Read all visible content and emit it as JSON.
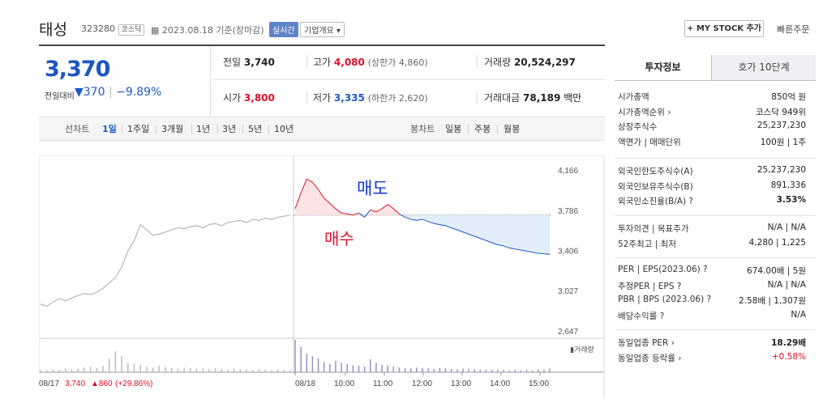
{
  "header": {
    "title": "태성",
    "code": "323280",
    "market_badge": "코스닥",
    "date_text": "2023.08.18 기준(장마감)",
    "live_button": "실시간",
    "company_button": "기업개요 ▾",
    "mystock_button": "+ MY STOCK 추가",
    "fast_order": "빠른주문"
  },
  "quote": {
    "price": "3,370",
    "change_label": "전일대비",
    "change_value": "▼370",
    "change_rate": "−9.89%",
    "prev_close_label": "전일",
    "prev_close": "3,740",
    "high_label": "고가",
    "high": "4,080",
    "upper_limit": "(상한가 4,860)",
    "volume_label": "거래량",
    "volume": "20,524,297",
    "open_label": "시가",
    "open": "3,800",
    "low_label": "저가",
    "low": "3,335",
    "lower_limit": "(하한가 2,620)",
    "amount_label": "거래대금",
    "amount": "78,189",
    "amount_unit": "백만"
  },
  "period_bar": {
    "line_chart_label": "선차트",
    "periods": [
      "1일",
      "1주일",
      "3개월",
      "1년",
      "3년",
      "5년",
      "10년"
    ],
    "active_period": "1일",
    "candle_label": "봉차트",
    "candles": [
      "일봉",
      "주봉",
      "월봉"
    ]
  },
  "chart_data": {
    "type": "line",
    "y_ticks": [
      "4,166",
      "3,786",
      "3,406",
      "3,027",
      "2,647"
    ],
    "ylim": [
      2647,
      4166
    ],
    "reference_line": 3740,
    "x_ticks": [
      "08/17",
      "08/18",
      "10:00",
      "11:00",
      "12:00",
      "13:00",
      "14:00",
      "15:00"
    ],
    "prev_day_summary": {
      "date": "08/17",
      "close": "3,740",
      "change": "▲860",
      "rate": "(+29.86%)"
    },
    "volume_legend": "거래량",
    "annotations": [
      "매도",
      "매수"
    ],
    "prev_day_series": [
      2900,
      2880,
      2920,
      2950,
      2930,
      2960,
      2980,
      3000,
      2990,
      3010,
      3050,
      3100,
      3150,
      3250,
      3400,
      3500,
      3650,
      3600,
      3550,
      3560,
      3580,
      3600,
      3620,
      3610,
      3630,
      3640,
      3620,
      3650,
      3660,
      3640,
      3670,
      3680,
      3690,
      3670,
      3700,
      3690,
      3710,
      3700,
      3720,
      3730,
      3740
    ],
    "today_series": [
      3800,
      3950,
      4080,
      4050,
      3980,
      3900,
      3850,
      3800,
      3760,
      3750,
      3740,
      3760,
      3720,
      3790,
      3770,
      3800,
      3840,
      3800,
      3750,
      3720,
      3700,
      3690,
      3700,
      3680,
      3660,
      3650,
      3640,
      3620,
      3600,
      3580,
      3560,
      3540,
      3520,
      3500,
      3480,
      3460,
      3450,
      3430,
      3420,
      3410,
      3400,
      3390,
      3380,
      3375,
      3370
    ],
    "prev_volume": [
      5,
      4,
      6,
      5,
      8,
      6,
      7,
      10,
      12,
      9,
      14,
      30,
      45,
      35,
      20,
      18,
      15,
      12,
      10,
      14,
      11,
      9,
      8,
      10,
      9,
      7,
      8,
      6,
      9,
      7,
      6,
      8,
      7,
      6,
      5,
      7,
      6,
      5,
      6,
      5,
      4
    ],
    "today_volume": [
      70,
      55,
      40,
      35,
      30,
      22,
      18,
      25,
      20,
      18,
      15,
      14,
      12,
      28,
      20,
      16,
      14,
      12,
      10,
      9,
      8,
      10,
      9,
      8,
      7,
      9,
      8,
      7,
      6,
      8,
      7,
      6,
      5,
      6,
      5,
      6,
      5,
      4,
      5,
      4,
      5,
      4,
      6,
      5,
      8
    ]
  },
  "invest_info": {
    "tab_active": "투자정보",
    "tab_other": "호가 10단계",
    "rows1": [
      {
        "label": "시가총액",
        "value": "850억 원"
      },
      {
        "label": "시가총액순위 ›",
        "value": "코스닥 949위"
      },
      {
        "label": "상장주식수",
        "value": "25,237,230"
      },
      {
        "label": "액면가 | 매매단위",
        "value": "100원 | 1주"
      }
    ],
    "rows2": [
      {
        "label": "외국인한도주식수(A)",
        "value": "25,237,230"
      },
      {
        "label": "외국인보유주식수(B)",
        "value": "891,336"
      },
      {
        "label": "외국인소진율(B/A) ?",
        "value": "3.53%"
      }
    ],
    "rows3": [
      {
        "label": "투자의견 | 목표주가",
        "value": "N/A | N/A"
      },
      {
        "label": "52주최고 | 최저",
        "value": "4,280 | 1,225"
      }
    ],
    "rows4": [
      {
        "label": "PER | EPS(2023.06) ?",
        "value": "674.00배 | 5원"
      },
      {
        "label": "추정PER | EPS ?",
        "value": "N/A | N/A"
      },
      {
        "label": "PBR | BPS (2023.06) ?",
        "value": "2.58배 | 1,307원"
      },
      {
        "label": "배당수익률 ?",
        "value": "N/A"
      }
    ],
    "rows5": [
      {
        "label": "동일업종 PER ›",
        "value": "18.29배"
      },
      {
        "label": "동일업종 등락률 ›",
        "value": "+0.58%"
      }
    ]
  },
  "colors": {
    "up": "#e0102a",
    "down": "#1c57c5",
    "prev_line": "#aaaaaa",
    "fill_down": "#e3eefb",
    "fill_up": "#fde4e4",
    "annotation": "#1035d8",
    "annotation2": "#e0102a"
  }
}
